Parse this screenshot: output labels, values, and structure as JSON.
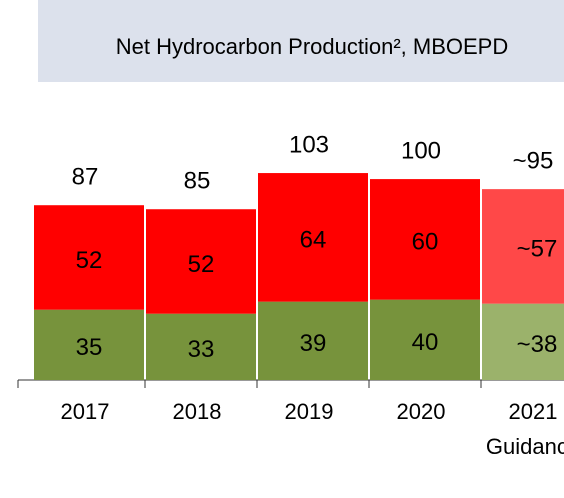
{
  "chart_data": {
    "type": "stacked_bar",
    "title": "Net Hydrocarbon Production², MBOEPD",
    "categories": [
      "2017",
      "2018",
      "2019",
      "2020",
      "2021"
    ],
    "annotation": "Guidance",
    "series": [
      {
        "colors": [
          "#77933c",
          "#77933c",
          "#77933c",
          "#77933c",
          "#9bb26b"
        ],
        "values": [
          35,
          33,
          39,
          40,
          38
        ],
        "value_labels": [
          "35",
          "33",
          "39",
          "40",
          "~38"
        ]
      },
      {
        "colors": [
          "#ff0000",
          "#ff0000",
          "#ff0000",
          "#ff0000",
          "#ff4848"
        ],
        "values": [
          52,
          52,
          64,
          60,
          57
        ],
        "value_labels": [
          "52",
          "52",
          "64",
          "60",
          "~57"
        ]
      }
    ],
    "totals": [
      87,
      85,
      103,
      100,
      95
    ],
    "total_labels": [
      "87",
      "85",
      "103",
      "100",
      "~95"
    ],
    "ylim": [
      0,
      110
    ]
  }
}
